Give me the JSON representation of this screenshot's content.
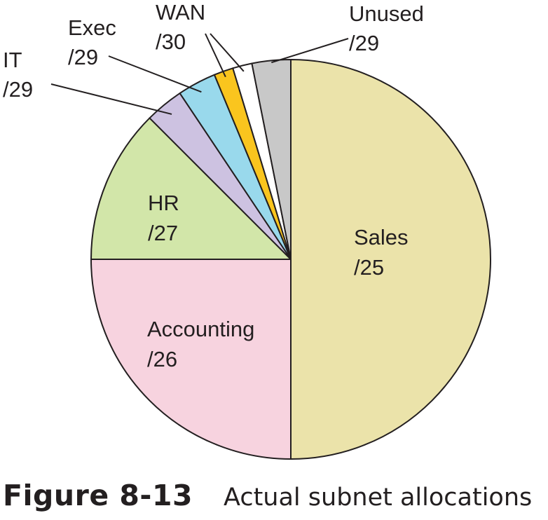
{
  "chart_data": {
    "type": "pie",
    "title": "",
    "start": "12 o'clock, clockwise",
    "slices": [
      {
        "name": "Sales",
        "prefix": "/25",
        "value": 128,
        "color": "#ebe3aa"
      },
      {
        "name": "Accounting",
        "prefix": "/26",
        "value": 64,
        "color": "#f7d3df"
      },
      {
        "name": "HR",
        "prefix": "/27",
        "value": 32,
        "color": "#d2e6a9"
      },
      {
        "name": "IT",
        "prefix": "/29",
        "value": 8,
        "color": "#cdc2e1"
      },
      {
        "name": "Exec",
        "prefix": "/29",
        "value": 8,
        "color": "#99d9ec"
      },
      {
        "name": "WAN",
        "prefix": "/30",
        "value": 4,
        "color": "#fac51e"
      },
      {
        "name": "WAN",
        "prefix": "/30",
        "value": 4,
        "color": "#ffffff"
      },
      {
        "name": "Unused",
        "prefix": "/29",
        "value": 8,
        "color": "#c8c8c8"
      }
    ],
    "labels": [
      {
        "key": "sales",
        "name": "Sales",
        "prefix": "/25"
      },
      {
        "key": "accounting",
        "name": "Accounting",
        "prefix": "/26"
      },
      {
        "key": "hr",
        "name": "HR",
        "prefix": "/27"
      },
      {
        "key": "it",
        "name": "IT",
        "prefix": "/29"
      },
      {
        "key": "exec",
        "name": "Exec",
        "prefix": "/29"
      },
      {
        "key": "wan",
        "name": "WAN",
        "prefix": "/30"
      },
      {
        "key": "unused",
        "name": "Unused",
        "prefix": "/29"
      }
    ],
    "outline_color": "#231f20"
  },
  "caption": {
    "figure_number": "Figure 8-13",
    "text": "Actual subnet allocations"
  }
}
